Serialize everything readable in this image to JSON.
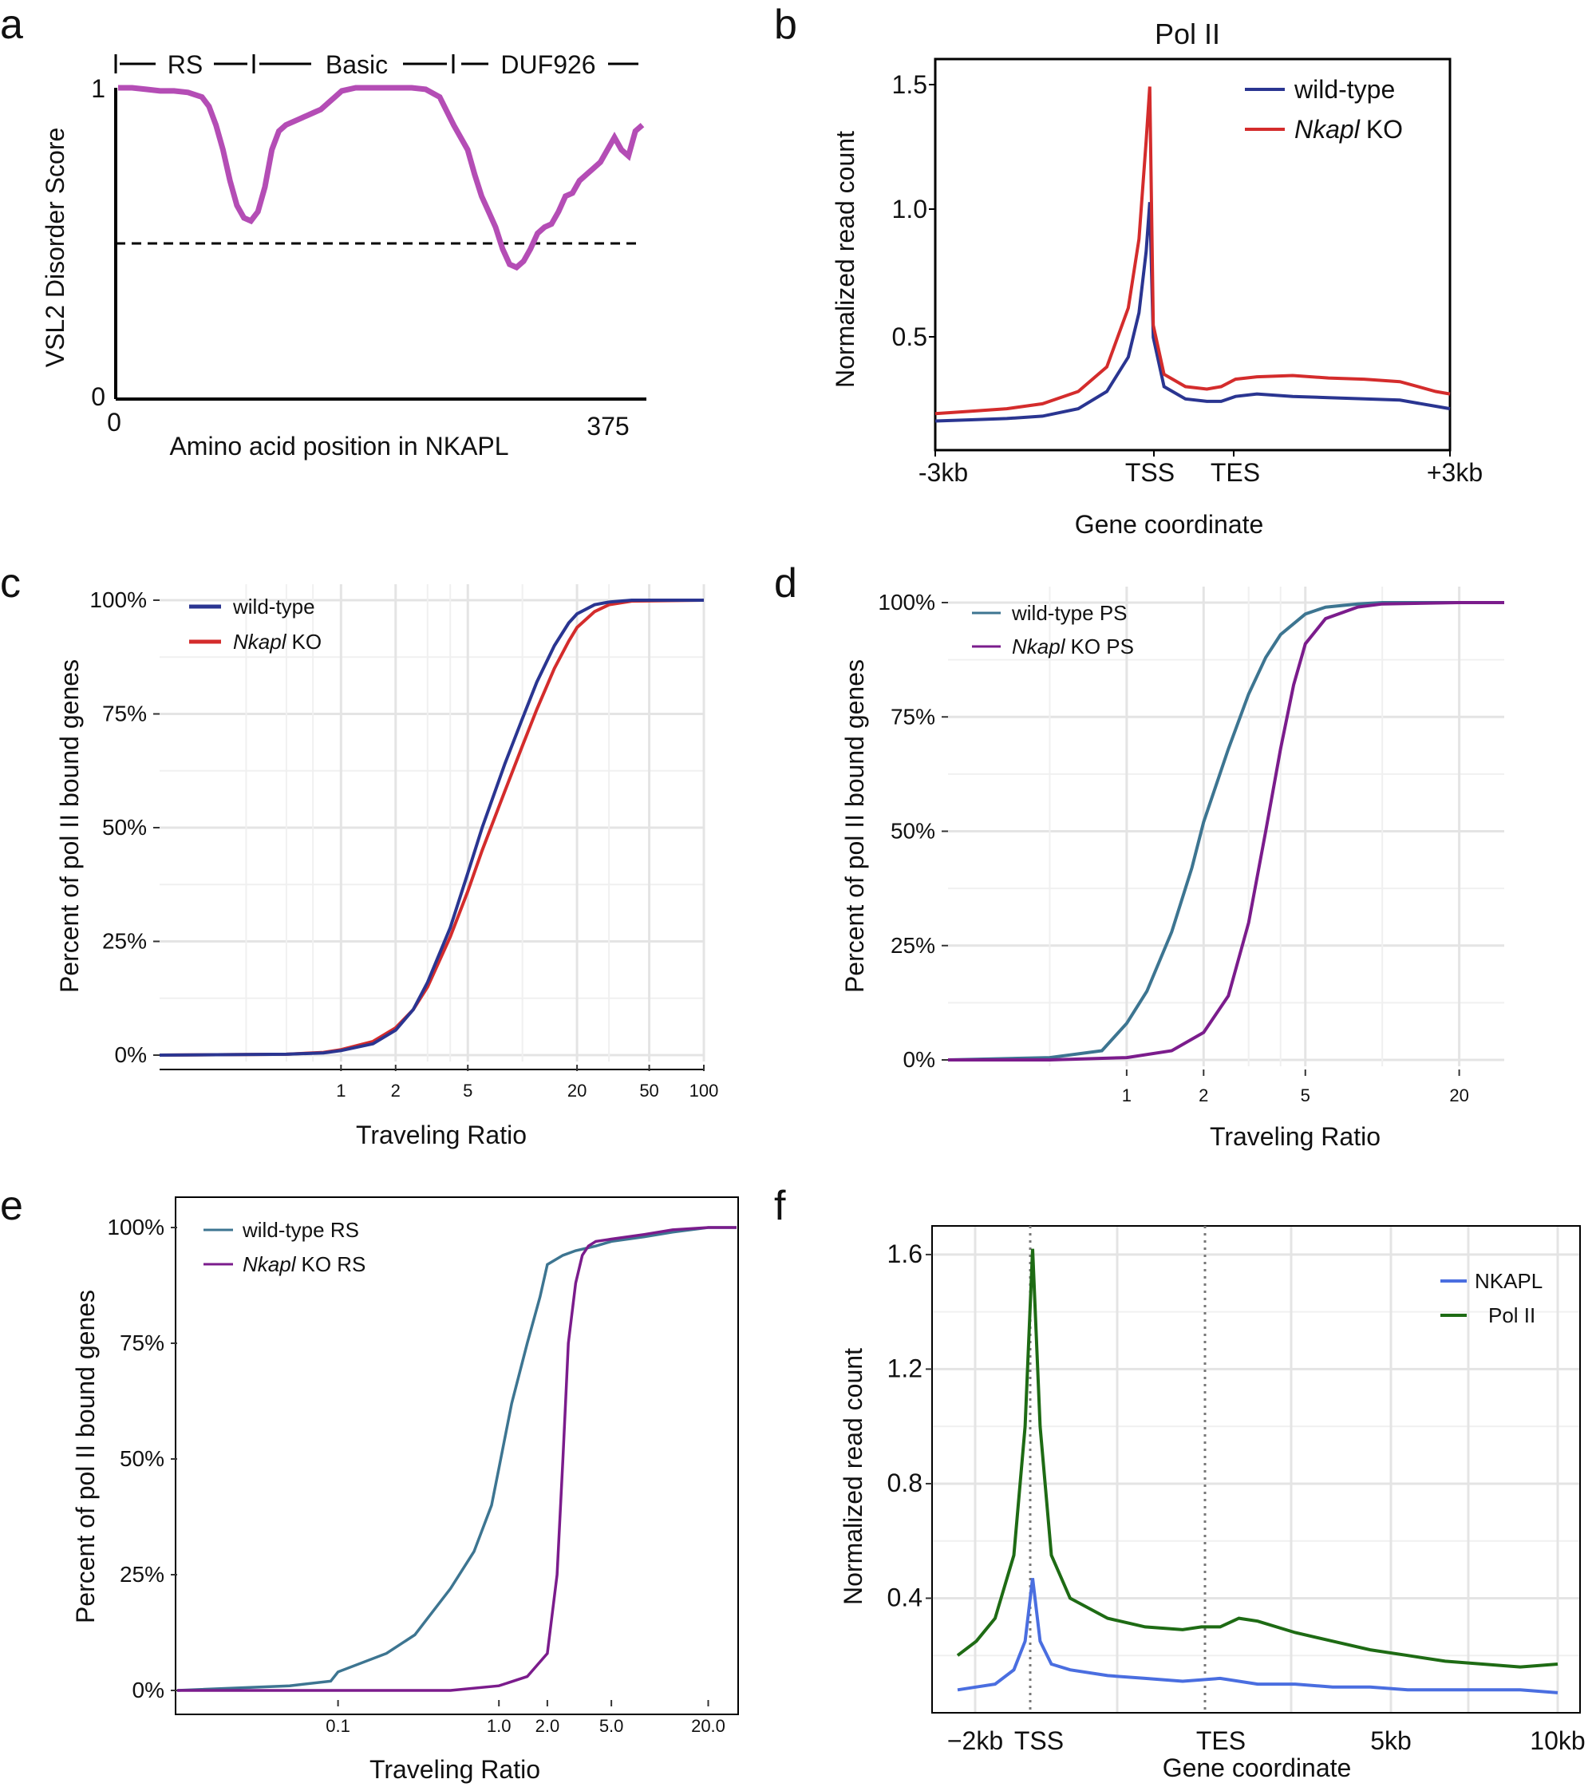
{
  "panels": {
    "a": "a",
    "b": "b",
    "c": "c",
    "d": "d",
    "e": "e",
    "f": "f"
  },
  "chart_data": [
    {
      "panel": "a",
      "type": "line",
      "title": "",
      "xlabel": "Amino acid position in NKAPL",
      "ylabel": "VSL2 Disorder Score",
      "xlim": [
        0,
        375
      ],
      "ylim": [
        0,
        1
      ],
      "x_tick_labels": [
        "0",
        "375"
      ],
      "y_tick_labels": [
        "0",
        "1"
      ],
      "domain_labels": [
        "RS",
        "Basic",
        "DUF926"
      ],
      "threshold": 0.5,
      "color": "#b44db5",
      "x": [
        0,
        10,
        20,
        30,
        40,
        50,
        60,
        65,
        70,
        75,
        80,
        85,
        90,
        95,
        100,
        105,
        110,
        115,
        120,
        125,
        130,
        135,
        140,
        145,
        150,
        155,
        160,
        170,
        180,
        190,
        200,
        210,
        220,
        230,
        240,
        250,
        255,
        260,
        265,
        270,
        275,
        280,
        285,
        290,
        295,
        300,
        305,
        310,
        315,
        320,
        325,
        330,
        335,
        340,
        345,
        350,
        355,
        360,
        365,
        370,
        375
      ],
      "y": [
        1.0,
        1.0,
        0.995,
        0.99,
        0.99,
        0.985,
        0.97,
        0.94,
        0.88,
        0.8,
        0.7,
        0.62,
        0.58,
        0.57,
        0.6,
        0.68,
        0.8,
        0.86,
        0.88,
        0.89,
        0.9,
        0.91,
        0.92,
        0.93,
        0.95,
        0.97,
        0.99,
        1.0,
        1.0,
        1.0,
        1.0,
        1.0,
        0.995,
        0.97,
        0.88,
        0.8,
        0.72,
        0.65,
        0.6,
        0.55,
        0.48,
        0.43,
        0.42,
        0.44,
        0.48,
        0.53,
        0.55,
        0.56,
        0.6,
        0.65,
        0.66,
        0.7,
        0.72,
        0.74,
        0.76,
        0.8,
        0.84,
        0.8,
        0.78,
        0.86,
        0.88
      ]
    },
    {
      "panel": "b",
      "type": "line",
      "title": "Pol II",
      "xlabel": "Gene coordinate",
      "ylabel": "Normalized read count",
      "x_tick_labels": [
        "-3kb",
        "TSS",
        "TES",
        "+3kb"
      ],
      "y_tick_labels": [
        "0.5",
        "1.0",
        "1.5"
      ],
      "ylim": [
        0.1,
        1.58
      ],
      "legend_position": "top-right",
      "series": [
        {
          "name": "wild-type",
          "name_italic": "",
          "color": "#2a3591",
          "x": [
            0,
            0.5,
            1,
            1.5,
            2,
            2.4,
            2.7,
            2.85,
            2.95,
            3.0,
            3.05,
            3.2,
            3.5,
            3.8,
            4.0,
            4.2,
            4.5,
            5,
            5.5,
            6,
            6.5,
            7,
            7.2
          ],
          "y": [
            0.16,
            0.165,
            0.17,
            0.18,
            0.21,
            0.28,
            0.42,
            0.6,
            0.85,
            1.05,
            0.5,
            0.3,
            0.25,
            0.24,
            0.24,
            0.26,
            0.27,
            0.26,
            0.255,
            0.25,
            0.245,
            0.22,
            0.21
          ]
        },
        {
          "name": "KO",
          "name_italic": "Nkapl",
          "color": "#d42c2c",
          "x": [
            0,
            0.5,
            1,
            1.5,
            2,
            2.4,
            2.7,
            2.85,
            2.95,
            3.0,
            3.05,
            3.2,
            3.5,
            3.8,
            4.0,
            4.2,
            4.5,
            5,
            5.5,
            6,
            6.5,
            7,
            7.2
          ],
          "y": [
            0.19,
            0.2,
            0.21,
            0.23,
            0.28,
            0.38,
            0.62,
            0.9,
            1.3,
            1.52,
            0.55,
            0.35,
            0.3,
            0.29,
            0.3,
            0.33,
            0.34,
            0.345,
            0.335,
            0.33,
            0.32,
            0.28,
            0.27
          ]
        }
      ]
    },
    {
      "panel": "c",
      "type": "line",
      "title": "",
      "xlabel": "Traveling Ratio",
      "ylabel": "Percent of pol II bound genes",
      "x_scale": "log",
      "xlim": [
        0.1,
        100
      ],
      "x_tick_labels": [
        "1",
        "2",
        "5",
        "20",
        "50",
        "100"
      ],
      "y_tick_labels": [
        "0%",
        "25%",
        "50%",
        "75%",
        "100%"
      ],
      "ylim": [
        0,
        100
      ],
      "legend_position": "top-left",
      "series": [
        {
          "name": "wild-type",
          "name_italic": "",
          "color": "#2a3591",
          "x": [
            0.1,
            0.5,
            0.8,
            1,
            1.5,
            2,
            2.5,
            3,
            4,
            5,
            6,
            8,
            10,
            12,
            15,
            18,
            20,
            25,
            30,
            40,
            100
          ],
          "y": [
            0,
            0.2,
            0.5,
            1,
            2.5,
            5.5,
            10,
            16,
            28,
            40,
            50,
            64,
            74,
            82,
            90,
            95,
            97,
            99,
            99.6,
            100,
            100
          ]
        },
        {
          "name": "KO",
          "name_italic": "Nkapl",
          "color": "#d42c2c",
          "x": [
            0.1,
            0.5,
            0.8,
            1,
            1.5,
            2,
            2.5,
            3,
            4,
            5,
            6,
            8,
            10,
            12,
            15,
            18,
            20,
            25,
            30,
            40,
            100
          ],
          "y": [
            0,
            0.2,
            0.6,
            1.2,
            3,
            6,
            10,
            15,
            26,
            36,
            45,
            58,
            68,
            76,
            85,
            91,
            94,
            97.5,
            99,
            99.8,
            100
          ]
        }
      ]
    },
    {
      "panel": "d",
      "type": "line",
      "title": "",
      "xlabel": "Traveling Ratio",
      "ylabel": "Percent of pol II bound genes",
      "x_scale": "log",
      "xlim": [
        0.2,
        30
      ],
      "x_tick_labels": [
        "1",
        "2",
        "5",
        "20"
      ],
      "y_tick_labels": [
        "0%",
        "25%",
        "50%",
        "75%",
        "100%"
      ],
      "ylim": [
        0,
        100
      ],
      "legend_position": "top-left",
      "series": [
        {
          "name": "wild-type PS",
          "name_italic": "",
          "color": "#3d7591",
          "x": [
            0.2,
            0.5,
            0.8,
            1.0,
            1.2,
            1.5,
            1.8,
            2.0,
            2.5,
            3.0,
            3.5,
            4.0,
            5.0,
            6.0,
            8.0,
            10,
            20,
            30
          ],
          "y": [
            0,
            0.5,
            2,
            8,
            15,
            28,
            42,
            52,
            68,
            80,
            88,
            93,
            97.5,
            99,
            99.7,
            100,
            100,
            100
          ]
        },
        {
          "name": "KO PS",
          "name_italic": "Nkapl",
          "color": "#7b1c8c",
          "x": [
            0.2,
            0.5,
            1.0,
            1.5,
            2.0,
            2.5,
            3.0,
            3.5,
            4.0,
            4.5,
            5.0,
            6.0,
            8.0,
            10,
            20,
            30
          ],
          "y": [
            0,
            0,
            0.5,
            2,
            6,
            14,
            30,
            50,
            68,
            82,
            91,
            96.5,
            99,
            99.7,
            100,
            100
          ]
        }
      ]
    },
    {
      "panel": "e",
      "type": "line",
      "title": "",
      "xlabel": "Traveling Ratio",
      "ylabel": "Percent of pol II bound genes",
      "x_scale": "log",
      "xlim": [
        0.01,
        30
      ],
      "x_tick_labels": [
        "0.1",
        "1.0",
        "2.0",
        "5.0",
        "20.0"
      ],
      "y_tick_labels": [
        "0%",
        "25%",
        "50%",
        "75%",
        "100%"
      ],
      "ylim": [
        0,
        100
      ],
      "legend_position": "top-left",
      "series": [
        {
          "name": "wild-type RS",
          "name_italic": "",
          "color": "#3d7591",
          "x": [
            0.01,
            0.05,
            0.09,
            0.1,
            0.2,
            0.3,
            0.5,
            0.7,
            0.9,
            1.0,
            1.2,
            1.5,
            1.8,
            2.0,
            2.5,
            3.0,
            4.0,
            5.0,
            8.0,
            12,
            20,
            30
          ],
          "y": [
            0,
            1,
            2,
            4,
            8,
            12,
            22,
            30,
            40,
            48,
            62,
            75,
            85,
            92,
            94,
            95,
            96,
            97,
            98,
            99,
            100,
            100
          ]
        },
        {
          "name": "KO RS",
          "name_italic": "Nkapl",
          "color": "#7b1c8c",
          "x": [
            0.01,
            0.5,
            1.0,
            1.5,
            2.0,
            2.3,
            2.5,
            2.7,
            3.0,
            3.3,
            3.6,
            4.0,
            5.0,
            8.0,
            12,
            20,
            30
          ],
          "y": [
            0,
            0,
            1,
            3,
            8,
            25,
            50,
            75,
            88,
            94,
            96,
            97,
            97.5,
            98.5,
            99.5,
            100,
            100
          ]
        }
      ]
    },
    {
      "panel": "f",
      "type": "line",
      "title": "",
      "xlabel": "Gene coordinate",
      "ylabel": "Normalized read count",
      "x_tick_labels": [
        "−2kb",
        "TSS",
        "TES",
        "5kb",
        "10kb"
      ],
      "y_tick_labels": [
        "0.4",
        "0.8",
        "1.2",
        "1.6"
      ],
      "ylim": [
        0.0,
        1.7
      ],
      "legend_position": "right",
      "series": [
        {
          "name": "NKAPL",
          "name_italic": "",
          "color": "#4a6ee0",
          "x": [
            -2,
            -1.5,
            -1,
            -0.5,
            -0.2,
            0,
            0.2,
            0.5,
            1,
            2,
            3,
            4,
            5,
            6,
            7,
            8,
            9,
            10,
            11,
            12,
            13,
            14
          ],
          "y": [
            0.08,
            0.09,
            0.1,
            0.15,
            0.25,
            0.47,
            0.25,
            0.17,
            0.15,
            0.13,
            0.12,
            0.11,
            0.12,
            0.1,
            0.1,
            0.09,
            0.09,
            0.08,
            0.08,
            0.08,
            0.08,
            0.07
          ]
        },
        {
          "name": "Pol II",
          "name_italic": "",
          "color": "#1e6b14",
          "x": [
            -2,
            -1.5,
            -1,
            -0.5,
            -0.2,
            0,
            0.2,
            0.5,
            1,
            2,
            3,
            4,
            4.5,
            5,
            5.5,
            6,
            7,
            8,
            9,
            10,
            11,
            12,
            13,
            14
          ],
          "y": [
            0.2,
            0.25,
            0.33,
            0.55,
            1.0,
            1.62,
            1.0,
            0.55,
            0.4,
            0.33,
            0.3,
            0.29,
            0.3,
            0.3,
            0.33,
            0.32,
            0.28,
            0.25,
            0.22,
            0.2,
            0.18,
            0.17,
            0.16,
            0.17
          ]
        }
      ]
    }
  ]
}
